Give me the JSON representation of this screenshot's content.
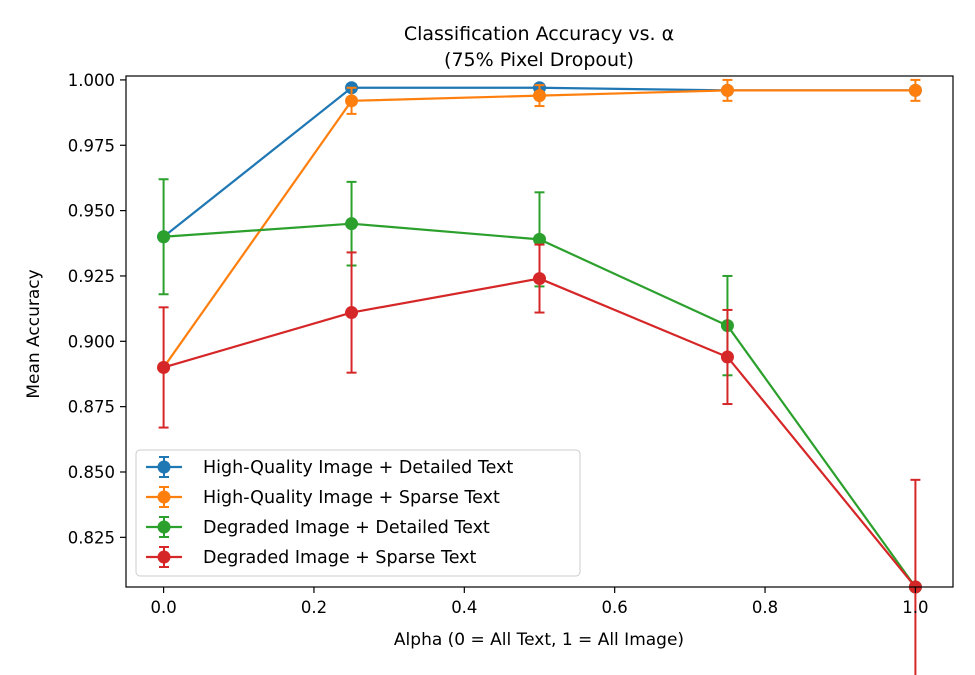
{
  "chart_data": {
    "type": "line",
    "title": "Classification Accuracy vs. α",
    "subtitle": "(75% Pixel Dropout)",
    "xlabel": "Alpha (0 = All Text, 1 = All Image)",
    "ylabel": "Mean Accuracy",
    "xlim": [
      -0.05,
      1.05
    ],
    "ylim": [
      0.806,
      1.0015
    ],
    "xticks": [
      0.0,
      0.2,
      0.4,
      0.6,
      0.8,
      1.0
    ],
    "xtick_labels": [
      "0.0",
      "0.2",
      "0.4",
      "0.6",
      "0.8",
      "1.0"
    ],
    "yticks": [
      0.825,
      0.85,
      0.875,
      0.9,
      0.925,
      0.95,
      0.975,
      1.0
    ],
    "ytick_labels": [
      "0.825",
      "0.850",
      "0.875",
      "0.900",
      "0.925",
      "0.950",
      "0.975",
      "1.000"
    ],
    "grid": false,
    "legend_position": "lower-left",
    "x": [
      0.0,
      0.25,
      0.5,
      0.75,
      1.0
    ],
    "series": [
      {
        "name": "High-Quality Image + Detailed Text",
        "color": "#1f77b4",
        "values": [
          0.94,
          0.997,
          0.997,
          0.996,
          0.996
        ],
        "errors": [
          0.0,
          0.001,
          0.001,
          0.001,
          0.001
        ]
      },
      {
        "name": "High-Quality Image + Sparse Text",
        "color": "#ff7f0e",
        "values": [
          0.89,
          0.992,
          0.994,
          0.996,
          0.996
        ],
        "errors": [
          0.0,
          0.005,
          0.004,
          0.004,
          0.004
        ]
      },
      {
        "name": "Degraded Image + Detailed Text",
        "color": "#2ca02c",
        "values": [
          0.94,
          0.945,
          0.939,
          0.906,
          0.806
        ],
        "errors": [
          0.022,
          0.016,
          0.018,
          0.019,
          0.0
        ]
      },
      {
        "name": "Degraded Image + Sparse Text",
        "color": "#d62728",
        "values": [
          0.89,
          0.911,
          0.924,
          0.894,
          0.806
        ],
        "errors": [
          0.023,
          0.023,
          0.013,
          0.018,
          0.041
        ]
      }
    ]
  }
}
